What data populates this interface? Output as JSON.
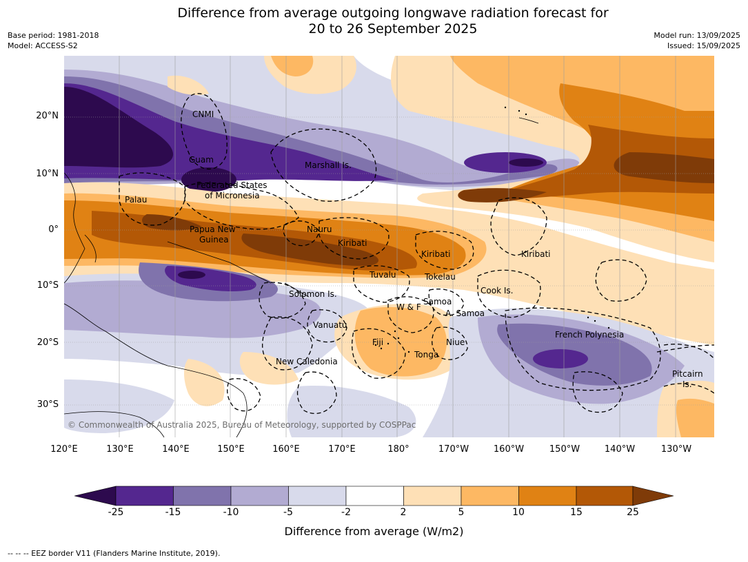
{
  "title_line1": "Difference from average outgoing longwave radiation forecast for",
  "title_line2": "20 to 26 September 2025",
  "base_period": "Base period: 1981-2018",
  "model": "Model: ACCESS-S2",
  "model_run": "Model run: 13/09/2025",
  "issued": "Issued: 15/09/2025",
  "lat_labels": [
    "20°N",
    "10°N",
    "0°",
    "10°S",
    "20°S",
    "30°S"
  ],
  "lon_labels": [
    "120°E",
    "130°E",
    "140°E",
    "150°E",
    "160°E",
    "170°E",
    "180°",
    "170°W",
    "160°W",
    "150°W",
    "140°W",
    "130°W"
  ],
  "places": {
    "cnmi": "CNMI",
    "guam": "Guam",
    "marshall": "Marshall Is.",
    "fsm1": "Federated States",
    "fsm2": "of Micronesia",
    "palau": "Palau",
    "png1": "Papua New",
    "png2": "Guinea",
    "nauru": "Nauru",
    "kiribati_w": "Kiribati",
    "kiribati_c": "Kiribati",
    "kiribati_e": "Kiribati",
    "tuvalu": "Tuvalu",
    "tokelau": "Tokelau",
    "cook": "Cook Is.",
    "solomon": "Solomon Is.",
    "wf": "W & F",
    "samoa": "Samoa",
    "asamoa": "A. Samoa",
    "vanuatu": "Vanuatu",
    "fiji": "Fiji",
    "niue": "Niue",
    "tonga": "Tonga",
    "frpoly": "French Polynesia",
    "newcal": "New Caledonia",
    "pitcairn1": "Pitcairn",
    "pitcairn2": "Is."
  },
  "copyright": "© Commonwealth of Australia 2025, Bureau of Meteorology, supported by COSPPac",
  "colorbar": {
    "ticks": [
      "-25",
      "-15",
      "-10",
      "-5",
      "-2",
      "2",
      "5",
      "10",
      "15",
      "25"
    ],
    "colors": [
      "#2d0a4e",
      "#54278f",
      "#8073ac",
      "#b2abd2",
      "#d8daeb",
      "#ffffff",
      "#fee0b6",
      "#fdb863",
      "#e08214",
      "#b35806",
      "#7f3b08"
    ],
    "label": "Difference from average (W/m2)"
  },
  "footnote": "--  --  -- EEZ border V11 (Flanders Marine Institute, 2019)."
}
